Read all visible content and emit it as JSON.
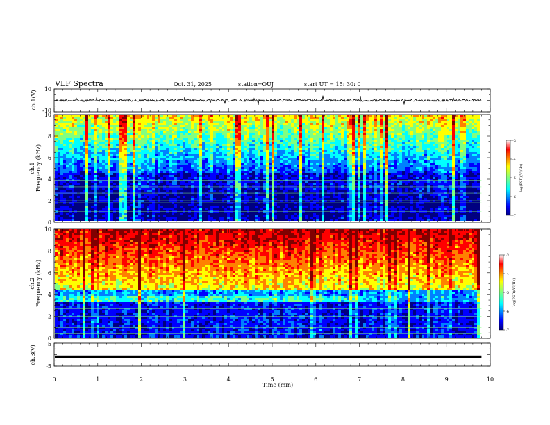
{
  "header": {
    "title": "VLF Spectra",
    "date": "Oct. 31, 2025",
    "station": "station=OUJ",
    "start": "start  UT =   15: 30: 0"
  },
  "chart_data": [
    {
      "type": "line",
      "name": "ch1-waveform",
      "ylabel": "ch.1(V)",
      "ylim": [
        -10,
        10
      ],
      "ytick_labels": [
        "10",
        "-10"
      ],
      "baseline": 0,
      "xlim": [
        0,
        10
      ],
      "data_end_min": 9.8
    },
    {
      "type": "heatmap",
      "name": "ch1-spectrogram",
      "ylabel": "ch.1\nFrequency (kHz)",
      "ylim": [
        0,
        10
      ],
      "ytick_labels": [
        "0",
        "2",
        "4",
        "6",
        "8",
        "10"
      ],
      "xlim": [
        0,
        10
      ],
      "data_end_min": 9.8,
      "colorbar": {
        "label": "log(PSD)(V²/Hz)",
        "range": [
          -7,
          -3
        ],
        "tick_labels": [
          "-3",
          "-4",
          "-5",
          "-6",
          "-7"
        ]
      }
    },
    {
      "type": "heatmap",
      "name": "ch2-spectrogram",
      "ylabel": "ch.2\nFrequency (kHz)",
      "ylim": [
        0,
        10
      ],
      "ytick_labels": [
        "0",
        "2",
        "4",
        "6",
        "8",
        "10"
      ],
      "xlim": [
        0,
        10
      ],
      "data_end_min": 9.8,
      "colorbar": {
        "label": "log(PSD)(V²/Hz)",
        "range": [
          -7,
          -3
        ],
        "tick_labels": [
          "-3",
          "-4",
          "-5",
          "-6",
          "-7"
        ]
      }
    },
    {
      "type": "line",
      "name": "ch3-waveform",
      "ylabel": "ch.3(V)",
      "ylim": [
        -5,
        5
      ],
      "ytick_labels": [
        "5",
        "-5"
      ],
      "baseline": -1,
      "xlim": [
        0,
        10
      ],
      "data_end_min": 9.8,
      "xlabel": "Time (min)",
      "xtick_labels": [
        "0",
        "1",
        "2",
        "3",
        "4",
        "5",
        "6",
        "7",
        "8",
        "9",
        "10"
      ]
    }
  ],
  "colors": {
    "jet": [
      "#000080",
      "#0000ff",
      "#0080ff",
      "#00ffff",
      "#80ff80",
      "#ffff00",
      "#ff8000",
      "#ff0000",
      "#800000"
    ],
    "ink": "#000000"
  }
}
